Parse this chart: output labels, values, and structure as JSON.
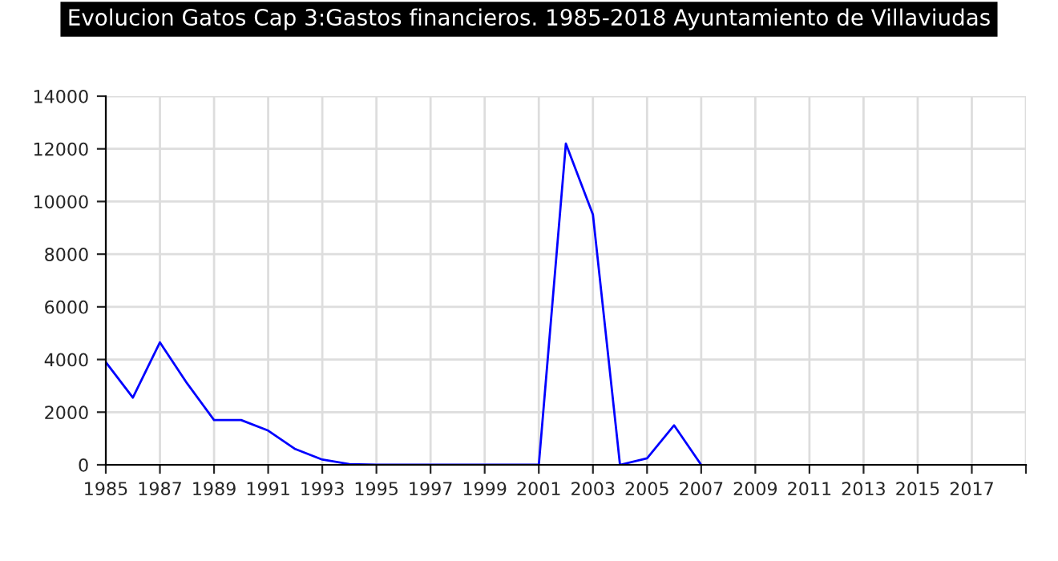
{
  "chart_data": {
    "type": "line",
    "title": "Evolucion Gatos Cap 3:Gastos financieros. 1985-2018 Ayuntamiento de Villaviudas",
    "x": [
      1985,
      1986,
      1987,
      1988,
      1989,
      1990,
      1991,
      1992,
      1993,
      1994,
      1995,
      1996,
      1997,
      1998,
      1999,
      2000,
      2001,
      2002,
      2003,
      2004,
      2005,
      2006,
      2007
    ],
    "series": [
      {
        "color": "#0000ff",
        "values": [
          3900,
          2550,
          4650,
          3100,
          1700,
          1700,
          1300,
          600,
          200,
          30,
          0,
          0,
          0,
          0,
          0,
          0,
          0,
          12200,
          9500,
          0,
          250,
          1500,
          0
        ]
      }
    ],
    "xlim": [
      1985,
      2019
    ],
    "xticks": [
      1985,
      1987,
      1989,
      1991,
      1993,
      1995,
      1997,
      1999,
      2001,
      2003,
      2005,
      2007,
      2009,
      2011,
      2013,
      2015,
      2017,
      {
        "value": 2019,
        "label": null
      }
    ],
    "ylim": [
      0,
      14000
    ],
    "yticks": [
      0,
      2000,
      4000,
      6000,
      8000,
      10000,
      12000,
      14000
    ],
    "grid": true,
    "legend": false,
    "marker": "none",
    "line_style": "solid"
  }
}
